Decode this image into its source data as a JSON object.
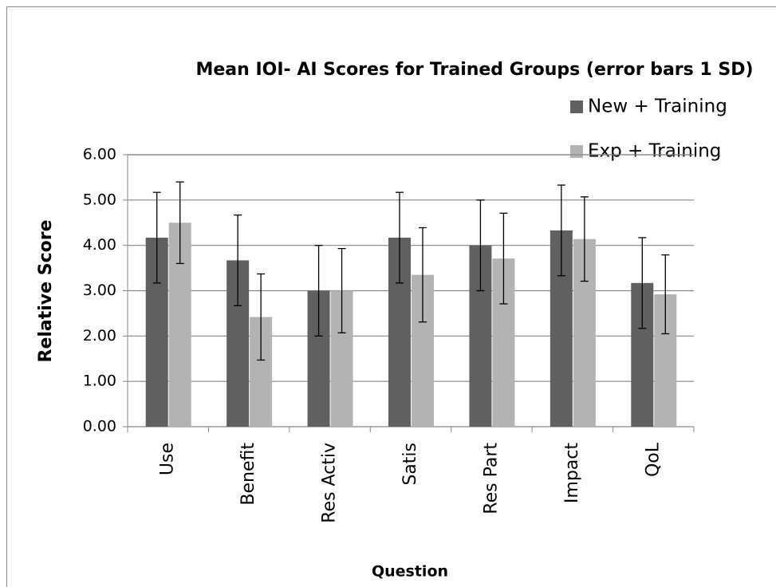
{
  "chart_data": {
    "type": "bar",
    "title": "Mean IOI- AI Scores for Trained Groups (error bars 1 SD)",
    "x_label": "Question",
    "y_label": "Relative Score",
    "categories": [
      "Use",
      "Benefit",
      "Res Activ",
      "Satis",
      "Res Part",
      "Impact",
      "QoL"
    ],
    "series": [
      {
        "name": "New + Training",
        "color": "#606060",
        "values": [
          4.17,
          3.67,
          3.0,
          4.17,
          4.0,
          4.33,
          3.17
        ],
        "errors": [
          1.0,
          1.0,
          1.0,
          1.0,
          1.0,
          1.0,
          1.0
        ]
      },
      {
        "name": "Exp + Training",
        "color": "#b3b3b3",
        "values": [
          4.5,
          2.42,
          3.0,
          3.35,
          3.71,
          4.14,
          2.92
        ],
        "errors": [
          0.9,
          0.95,
          0.93,
          1.04,
          1.0,
          0.93,
          0.87
        ]
      }
    ],
    "ylim": [
      0,
      6
    ],
    "yticks": [
      {
        "value": 0,
        "label": "0.00"
      },
      {
        "value": 1,
        "label": "1.00"
      },
      {
        "value": 2,
        "label": "2.00"
      },
      {
        "value": 3,
        "label": "3.00"
      },
      {
        "value": 4,
        "label": "4.00"
      },
      {
        "value": 5,
        "label": "5.00"
      },
      {
        "value": 6,
        "label": "6.00"
      }
    ],
    "grid": true,
    "legend": "top-right"
  }
}
